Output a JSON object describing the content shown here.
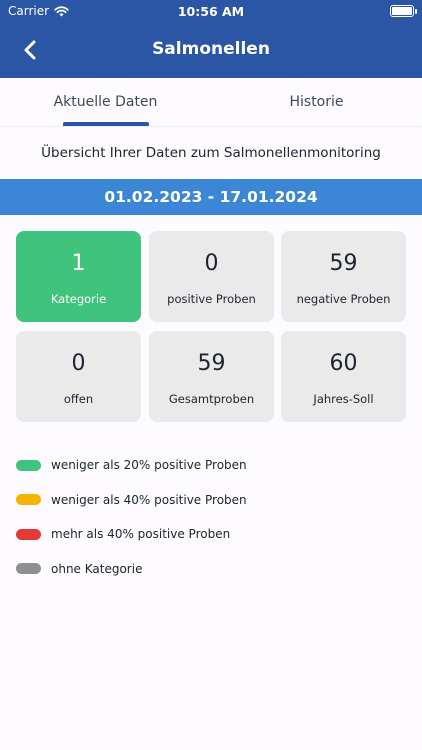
{
  "status": {
    "carrier": "Carrier",
    "time": "10:56 AM"
  },
  "nav": {
    "title": "Salmonellen"
  },
  "tabs": [
    {
      "label": "Aktuelle Daten",
      "selected": true
    },
    {
      "label": "Historie",
      "selected": false
    }
  ],
  "overview": "Übersicht Ihrer Daten zum Salmonellenmonitoring",
  "date_range": "01.02.2023 - 17.01.2024",
  "tiles": [
    {
      "value": "1",
      "label": "Kategorie"
    },
    {
      "value": "0",
      "label": "positive Proben"
    },
    {
      "value": "59",
      "label": "negative Proben"
    },
    {
      "value": "0",
      "label": "offen"
    },
    {
      "value": "59",
      "label": "Gesamtproben"
    },
    {
      "value": "60",
      "label": "Jahres-Soll"
    }
  ],
  "legend": [
    {
      "label": "weniger als 20% positive Proben",
      "color": "#3fc37d"
    },
    {
      "label": "weniger als 40% positive Proben",
      "color": "#f4b400"
    },
    {
      "label": "mehr als 40% positive Proben",
      "color": "#e53935"
    },
    {
      "label": "ohne Kategorie",
      "color": "#8e8e93"
    }
  ],
  "colors": {
    "header": "#2b56a6",
    "date_bar": "#3c86d6",
    "category_tile": "#3fc37d",
    "tile": "#eaeaea"
  }
}
